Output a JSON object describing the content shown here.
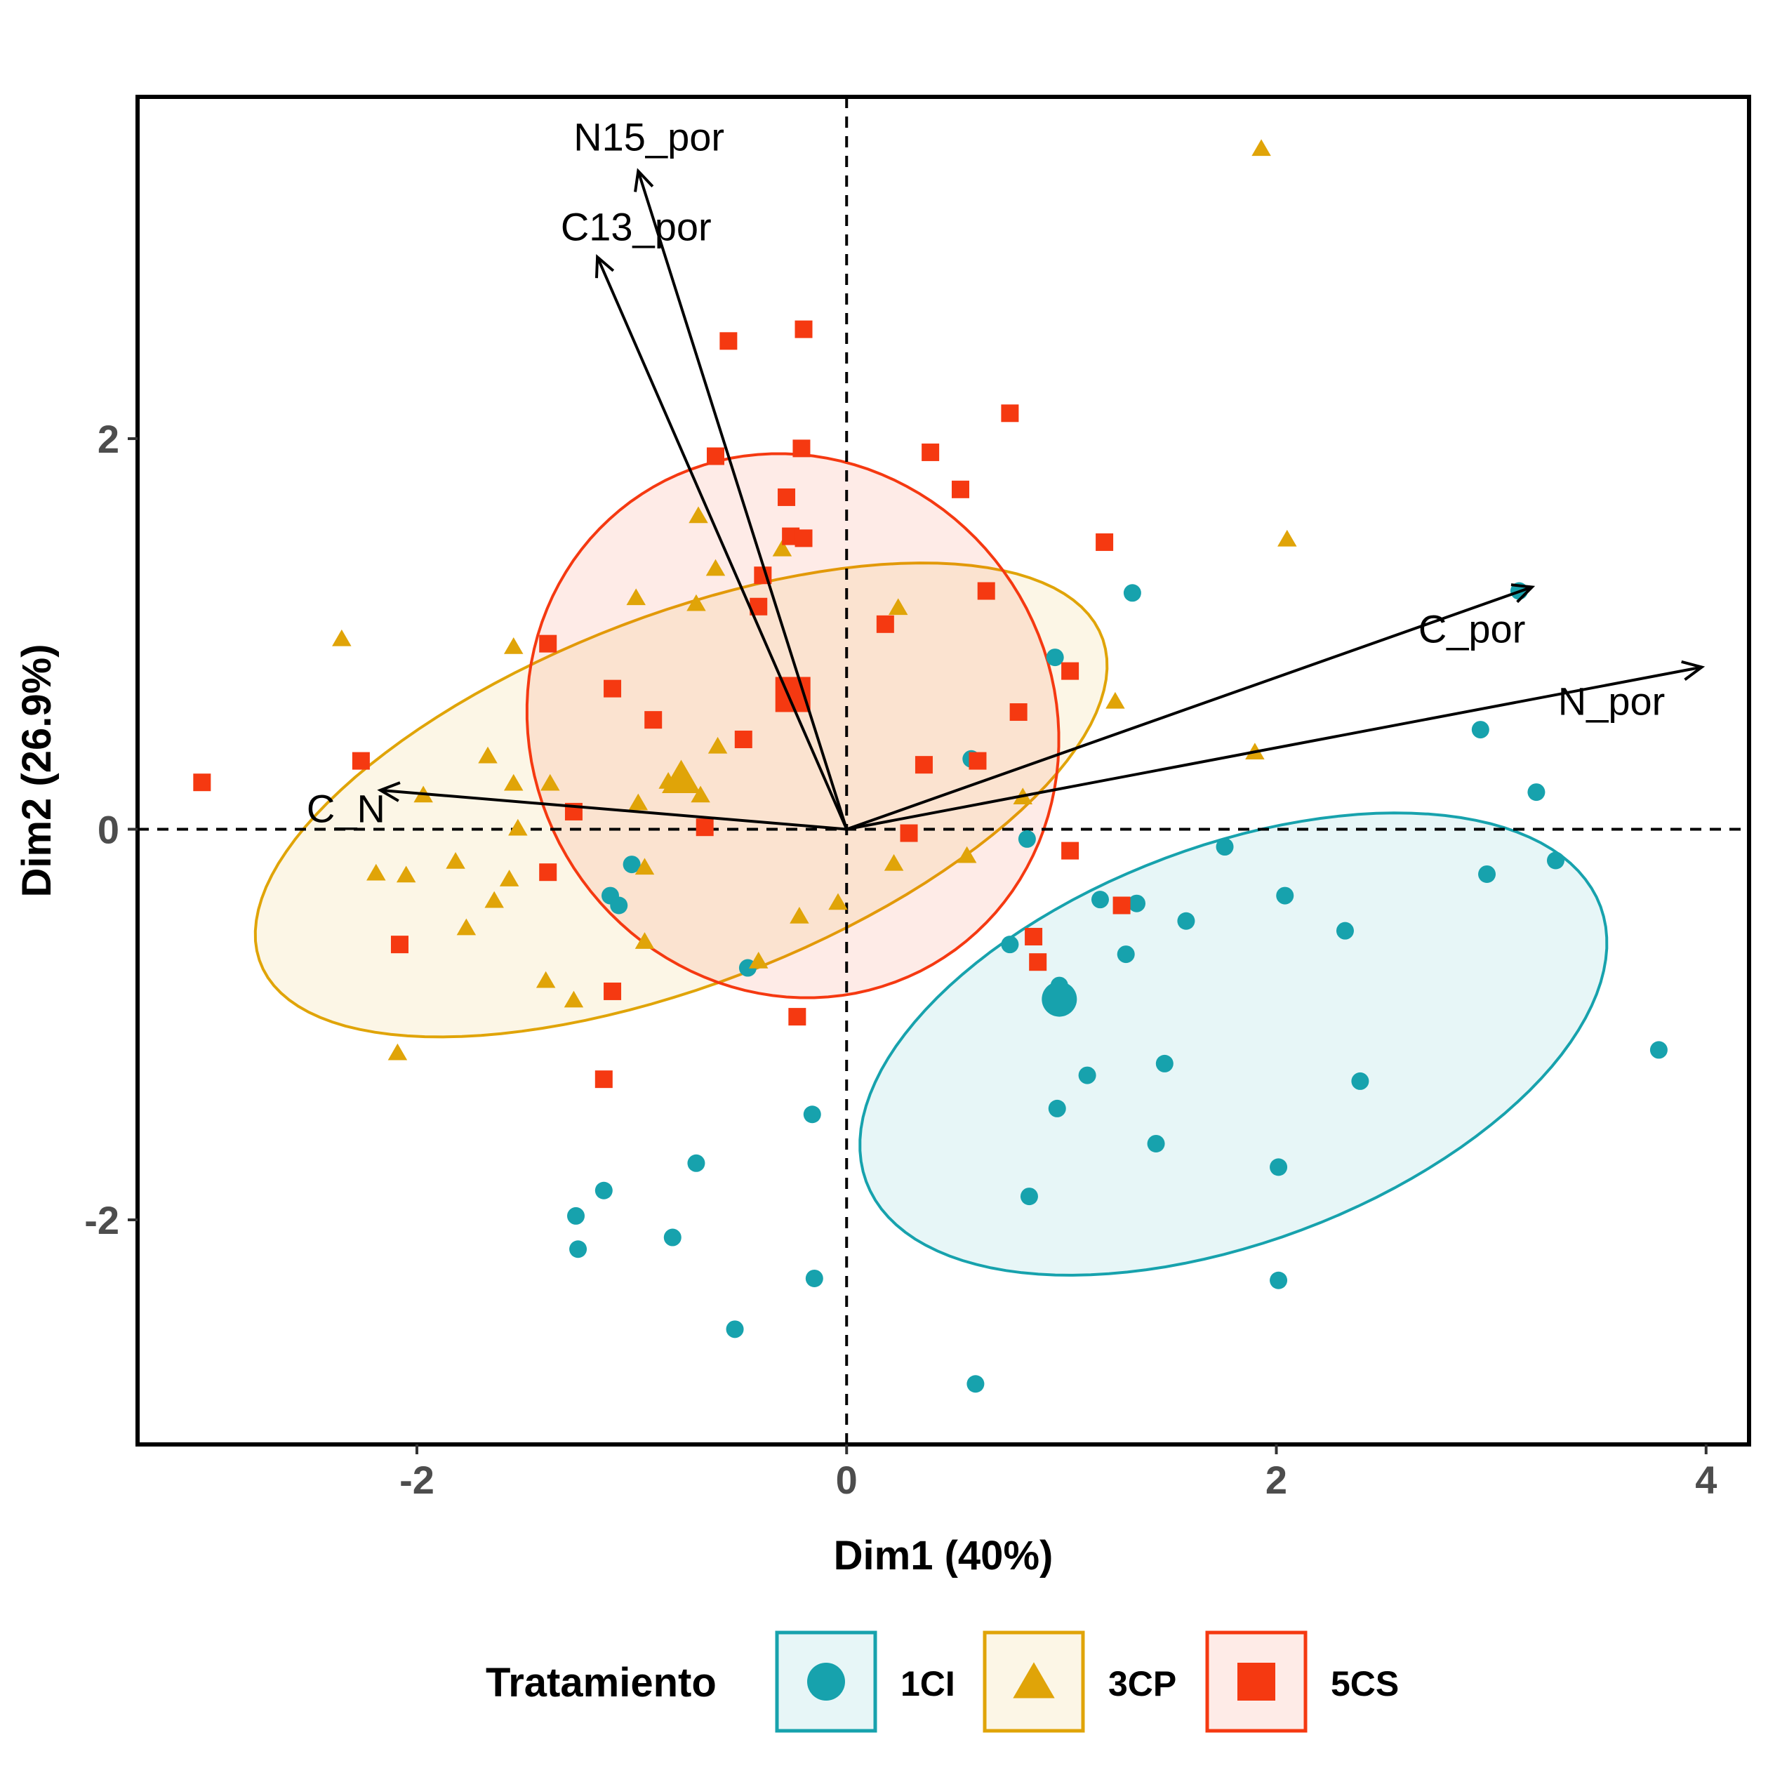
{
  "chart_data": {
    "type": "scatter",
    "subtype": "pca-biplot",
    "xlabel": "Dim1 (40%)",
    "ylabel": "Dim2 (26.9%)",
    "xlim": [
      -3.3,
      4.2
    ],
    "ylim": [
      -3.15,
      3.75
    ],
    "xticks": [
      -2,
      0,
      2,
      4
    ],
    "xtick_labels": [
      "-2",
      "0",
      "2",
      "4"
    ],
    "yticks": [
      -2,
      0,
      2
    ],
    "ytick_labels": [
      "-2",
      "0",
      "2"
    ],
    "grid": false,
    "reference_lines": "dashed at x=0 and y=0",
    "legend": {
      "title": "Tratamiento",
      "position": "bottom"
    },
    "series": [
      {
        "name": "1CI",
        "marker": "circle",
        "color": "#17A2AD",
        "ellipse": {
          "cx": 1.8,
          "cy": -1.1,
          "rx": 1.85,
          "ry": 1.0,
          "angle_deg": 24
        },
        "centroid": [
          0.99,
          -0.87
        ],
        "points": [
          [
            0.97,
            0.88
          ],
          [
            1.33,
            1.21
          ],
          [
            3.13,
            1.22
          ],
          [
            2.95,
            0.51
          ],
          [
            3.21,
            0.19
          ],
          [
            2.98,
            -0.23
          ],
          [
            3.3,
            -0.16
          ],
          [
            0.58,
            0.36
          ],
          [
            0.84,
            -0.05
          ],
          [
            1.76,
            -0.09
          ],
          [
            2.04,
            -0.34
          ],
          [
            1.18,
            -0.36
          ],
          [
            1.35,
            -0.38
          ],
          [
            1.58,
            -0.47
          ],
          [
            2.32,
            -0.52
          ],
          [
            0.76,
            -0.59
          ],
          [
            1.3,
            -0.64
          ],
          [
            0.99,
            -0.8
          ],
          [
            -1.0,
            -0.18
          ],
          [
            -1.1,
            -0.34
          ],
          [
            -1.06,
            -0.39
          ],
          [
            -0.46,
            -0.71
          ],
          [
            1.48,
            -1.2
          ],
          [
            1.12,
            -1.26
          ],
          [
            2.39,
            -1.29
          ],
          [
            3.78,
            -1.13
          ],
          [
            0.98,
            -1.43
          ],
          [
            -0.16,
            -1.46
          ],
          [
            1.44,
            -1.61
          ],
          [
            -0.7,
            -1.71
          ],
          [
            2.01,
            -1.73
          ],
          [
            0.85,
            -1.88
          ],
          [
            -1.13,
            -1.85
          ],
          [
            -1.26,
            -1.98
          ],
          [
            -0.81,
            -2.09
          ],
          [
            -1.25,
            -2.15
          ],
          [
            -0.15,
            -2.3
          ],
          [
            2.01,
            -2.31
          ],
          [
            -0.52,
            -2.56
          ],
          [
            0.6,
            -2.84
          ]
        ]
      },
      {
        "name": "3CP",
        "marker": "triangle",
        "color": "#E0A408",
        "ellipse": {
          "cx": -0.77,
          "cy": 0.15,
          "rx": 2.13,
          "ry": 0.93,
          "angle_deg": 24
        },
        "centroid": [
          -0.77,
          0.25
        ],
        "points": [
          [
            1.93,
            3.48
          ],
          [
            2.05,
            1.48
          ],
          [
            -0.69,
            1.6
          ],
          [
            -0.61,
            1.33
          ],
          [
            -0.3,
            1.43
          ],
          [
            -0.98,
            1.18
          ],
          [
            -0.7,
            1.15
          ],
          [
            0.24,
            1.13
          ],
          [
            -2.35,
            0.97
          ],
          [
            -1.55,
            0.93
          ],
          [
            1.25,
            0.65
          ],
          [
            -0.6,
            0.42
          ],
          [
            -1.67,
            0.37
          ],
          [
            1.9,
            0.39
          ],
          [
            -0.83,
            0.24
          ],
          [
            -1.55,
            0.23
          ],
          [
            -1.38,
            0.23
          ],
          [
            -0.68,
            0.17
          ],
          [
            -0.97,
            0.13
          ],
          [
            0.82,
            0.16
          ],
          [
            -1.97,
            0.17
          ],
          [
            -1.53,
            0.0
          ],
          [
            -2.19,
            -0.23
          ],
          [
            -2.05,
            -0.24
          ],
          [
            -1.82,
            -0.17
          ],
          [
            -1.57,
            -0.26
          ],
          [
            -0.94,
            -0.2
          ],
          [
            0.56,
            -0.14
          ],
          [
            0.22,
            -0.18
          ],
          [
            -1.64,
            -0.37
          ],
          [
            -0.04,
            -0.38
          ],
          [
            -1.77,
            -0.51
          ],
          [
            -0.94,
            -0.58
          ],
          [
            -0.22,
            -0.45
          ],
          [
            -0.41,
            -0.68
          ],
          [
            -1.4,
            -0.78
          ],
          [
            -1.27,
            -0.88
          ],
          [
            -2.09,
            -1.15
          ]
        ]
      },
      {
        "name": "5CS",
        "marker": "square",
        "color": "#F53911",
        "ellipse": {
          "cx": -0.25,
          "cy": 0.53,
          "rx": 1.23,
          "ry": 1.4,
          "angle_deg": 12
        },
        "centroid": [
          -0.25,
          0.69
        ],
        "points": [
          [
            -0.55,
            2.5
          ],
          [
            -0.2,
            2.56
          ],
          [
            0.76,
            2.13
          ],
          [
            -0.21,
            1.95
          ],
          [
            -0.61,
            1.91
          ],
          [
            0.39,
            1.93
          ],
          [
            0.53,
            1.74
          ],
          [
            -0.28,
            1.7
          ],
          [
            -0.26,
            1.5
          ],
          [
            -0.2,
            1.49
          ],
          [
            1.2,
            1.47
          ],
          [
            -0.39,
            1.3
          ],
          [
            0.65,
            1.22
          ],
          [
            -0.41,
            1.14
          ],
          [
            0.18,
            1.05
          ],
          [
            -1.39,
            0.95
          ],
          [
            1.04,
            0.81
          ],
          [
            -1.09,
            0.72
          ],
          [
            0.8,
            0.6
          ],
          [
            -0.9,
            0.56
          ],
          [
            -0.48,
            0.46
          ],
          [
            0.61,
            0.35
          ],
          [
            0.36,
            0.33
          ],
          [
            -2.26,
            0.35
          ],
          [
            -3.0,
            0.24
          ],
          [
            -1.27,
            0.09
          ],
          [
            -0.66,
            0.01
          ],
          [
            0.29,
            -0.02
          ],
          [
            1.04,
            -0.11
          ],
          [
            -1.39,
            -0.22
          ],
          [
            1.28,
            -0.39
          ],
          [
            0.87,
            -0.55
          ],
          [
            0.89,
            -0.68
          ],
          [
            -2.08,
            -0.59
          ],
          [
            -1.09,
            -0.83
          ],
          [
            -0.23,
            -0.96
          ],
          [
            -1.13,
            -1.28
          ]
        ]
      }
    ],
    "variables": [
      {
        "name": "N15_por",
        "x": -0.97,
        "y": 3.37
      },
      {
        "name": "C13_por",
        "x": -1.16,
        "y": 2.93
      },
      {
        "name": "C_por",
        "x": 3.19,
        "y": 1.24
      },
      {
        "name": "N_por",
        "x": 3.98,
        "y": 0.83
      },
      {
        "name": "C_N",
        "x": -2.17,
        "y": 0.2
      }
    ]
  }
}
